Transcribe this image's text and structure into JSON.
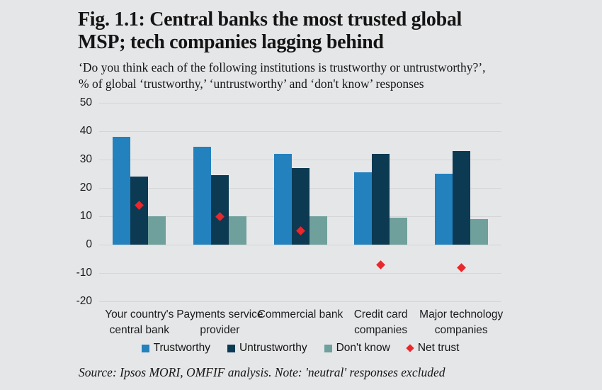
{
  "figure": {
    "title_lines": [
      "Fig. 1.1: Central banks the most trusted global",
      "MSP; tech companies lagging behind"
    ],
    "subtitle_lines": [
      "‘Do you think each of the following institutions is trustworthy or untrustworthy?’,",
      "% of global ‘trustworthy,’ ‘untrustworthy’ and ‘don't know’ responses"
    ],
    "source": "Source: Ipsos MORI, OMFIF analysis. Note: 'neutral' responses excluded"
  },
  "chart_data": {
    "type": "bar",
    "title": "Fig. 1.1: Central banks the most trusted global MSP; tech companies lagging behind",
    "categories": [
      "Your country's central bank",
      "Payments service provider",
      "Commercial bank",
      "Credit card companies",
      "Major technology companies"
    ],
    "series": [
      {
        "name": "Trustworthy",
        "type": "bar",
        "color": "#2381be",
        "values": [
          38,
          34.5,
          32,
          25.5,
          25
        ]
      },
      {
        "name": "Untrustworthy",
        "type": "bar",
        "color": "#0d3a53",
        "values": [
          24,
          24.5,
          27,
          32,
          33
        ]
      },
      {
        "name": "Don't know",
        "type": "bar",
        "color": "#6fa09b",
        "values": [
          10,
          10,
          10,
          9.5,
          9
        ]
      },
      {
        "name": "Net trust",
        "type": "diamond",
        "color": "#e8282c",
        "values": [
          14,
          10,
          5,
          -7,
          -8
        ]
      }
    ],
    "ylim": [
      -20,
      50
    ],
    "yticks": [
      50,
      40,
      30,
      20,
      10,
      0,
      -10,
      -20
    ],
    "ylabel": "",
    "xlabel": "",
    "grid": true,
    "legend_position": "bottom"
  }
}
